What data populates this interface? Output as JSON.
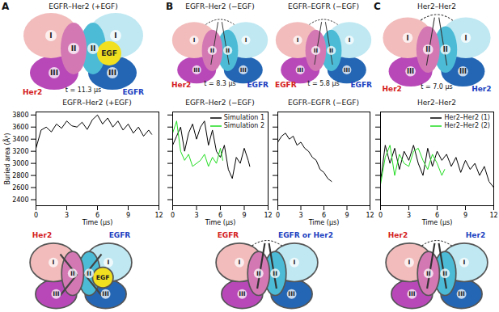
{
  "panels": [
    "A",
    "B",
    "C"
  ],
  "structures": [
    {
      "title": "EGFR–Her2 (+EGF)",
      "left": "Her2",
      "right": "EGFR",
      "time": "t = 11.3 μs",
      "domains": [
        "I",
        "II",
        "III"
      ],
      "ligand": "EGF"
    },
    {
      "title": "EGFR–Her2 (−EGF)",
      "left": "Her2",
      "right": "EGFR",
      "time": "t = 8.3 μs",
      "domains": [
        "I",
        "II",
        "III"
      ]
    },
    {
      "title": "EGFR–EGFR (−EGF)",
      "left": "EGFR",
      "right": "EGFR",
      "time": "t = 5.8 μs",
      "domains": [
        "I",
        "II",
        "III"
      ]
    },
    {
      "title": "Her2–Her2",
      "left": "Her2",
      "right": "Her2",
      "time": "t = 7.0 μs",
      "domains": [
        "I",
        "II",
        "III"
      ]
    }
  ],
  "schematics": [
    {
      "left": "Her2",
      "right": "EGFR",
      "domains": [
        "I",
        "II",
        "III"
      ],
      "ligand": "EGF"
    },
    {
      "left": "EGFR",
      "right": "EGFR or Her2",
      "domains": [
        "I",
        "II",
        "III"
      ]
    },
    {
      "left": "Her2",
      "right": "Her2",
      "domains": [
        "I",
        "II",
        "III"
      ]
    }
  ],
  "chart_data": [
    {
      "type": "line",
      "title": "EGFR–Her2 (+EGF)",
      "xlabel": "Time (μs)",
      "ylabel": "Buried area (Å²)",
      "xlim": [
        0,
        12
      ],
      "xticks": [
        0,
        3,
        6,
        9,
        12
      ],
      "ylim": [
        2300,
        3850
      ],
      "yticks": [
        2400,
        2600,
        2800,
        3000,
        3200,
        3400,
        3600,
        3800
      ],
      "grid": false,
      "series": [
        {
          "color": "#000000",
          "x": [
            0,
            0.5,
            1,
            1.5,
            2,
            2.5,
            3,
            3.5,
            4,
            4.5,
            5,
            5.5,
            6,
            6.5,
            7,
            7.5,
            8,
            8.5,
            9,
            9.5,
            10,
            10.5,
            11,
            11.3
          ],
          "values": [
            3250,
            3550,
            3600,
            3520,
            3650,
            3580,
            3700,
            3620,
            3600,
            3680,
            3560,
            3720,
            3800,
            3650,
            3750,
            3600,
            3700,
            3550,
            3650,
            3500,
            3600,
            3450,
            3550,
            3480
          ]
        }
      ]
    },
    {
      "type": "line",
      "title": "EGFR–Her2 (−EGF)",
      "xlabel": "Time (μs)",
      "xlim": [
        0,
        12
      ],
      "xticks": [
        0,
        3,
        6,
        9,
        12
      ],
      "ylim": [
        2300,
        3850
      ],
      "yticks": [
        2400,
        2600,
        2800,
        3000,
        3200,
        3400,
        3600,
        3800
      ],
      "grid": false,
      "tick_labels": "x",
      "legend": "top-right",
      "series": [
        {
          "name": "Simulation 1",
          "color": "#000000",
          "x": [
            0,
            0.5,
            1,
            1.5,
            2,
            2.5,
            3,
            3.5,
            4,
            4.5,
            5,
            5.5,
            6,
            6.5,
            7,
            7.5,
            8,
            8.5,
            9,
            9.5,
            9.7
          ],
          "values": [
            3300,
            3450,
            3600,
            3200,
            3500,
            3650,
            3400,
            3600,
            3700,
            3300,
            3550,
            3200,
            3100,
            3300,
            2900,
            2750,
            3100,
            3000,
            3250,
            3050,
            2950
          ]
        },
        {
          "name": "Simulation 2",
          "color": "#22dd22",
          "x": [
            0,
            0.5,
            1,
            1.5,
            2,
            2.5,
            3,
            3.5,
            4,
            4.5,
            5,
            5.5,
            6,
            6.3
          ],
          "values": [
            3500,
            3700,
            3200,
            3050,
            3150,
            2950,
            3000,
            3050,
            3150,
            2950,
            3100,
            3000,
            3250,
            3050
          ]
        }
      ]
    },
    {
      "type": "line",
      "title": "EGFR–EGFR (−EGF)",
      "xlabel": "Time (μs)",
      "xlim": [
        0,
        12
      ],
      "xticks": [
        0,
        3,
        6,
        9,
        12
      ],
      "ylim": [
        2300,
        3850
      ],
      "yticks": [
        2400,
        2600,
        2800,
        3000,
        3200,
        3400,
        3600,
        3800
      ],
      "grid": false,
      "tick_labels": "x",
      "series": [
        {
          "color": "#000000",
          "x": [
            0,
            0.5,
            1,
            1.5,
            2,
            2.5,
            3,
            3.5,
            4,
            4.5,
            5,
            5.5,
            6,
            6.5,
            7
          ],
          "values": [
            3350,
            3450,
            3500,
            3400,
            3450,
            3300,
            3350,
            3250,
            3200,
            3100,
            3050,
            2900,
            2850,
            2750,
            2700
          ]
        }
      ]
    },
    {
      "type": "line",
      "title": "Her2–Her2",
      "xlabel": "Time (μs)",
      "xlim": [
        0,
        12
      ],
      "xticks": [
        0,
        3,
        6,
        9,
        12
      ],
      "ylim": [
        2300,
        3850
      ],
      "yticks": [
        2400,
        2600,
        2800,
        3000,
        3200,
        3400,
        3600,
        3800
      ],
      "grid": false,
      "tick_labels": "x",
      "legend": "top-right",
      "series": [
        {
          "name": "Her2–Her2 (1)",
          "color": "#000000",
          "x": [
            0,
            0.5,
            1,
            1.5,
            2,
            2.5,
            3,
            3.5,
            4,
            4.5,
            5,
            5.5,
            6,
            6.5,
            7,
            7.5,
            8,
            8.5,
            9,
            9.5,
            10,
            10.5,
            11,
            11.5,
            12
          ],
          "values": [
            2700,
            3300,
            3000,
            3250,
            2900,
            3200,
            3050,
            3300,
            3000,
            2800,
            3250,
            2950,
            3200,
            3050,
            3150,
            2950,
            3100,
            2850,
            3050,
            2900,
            3000,
            2800,
            2950,
            2700,
            2600
          ]
        },
        {
          "name": "Her2–Her2 (2)",
          "color": "#22dd22",
          "x": [
            0,
            0.5,
            1,
            1.5,
            2,
            2.5,
            3,
            3.5,
            4,
            4.5,
            5,
            5.5,
            6,
            6.5,
            6.8
          ],
          "values": [
            2650,
            3100,
            3300,
            2800,
            3150,
            3000,
            2950,
            3200,
            3250,
            3050,
            2900,
            3150,
            3000,
            2800,
            2900
          ]
        }
      ]
    }
  ]
}
